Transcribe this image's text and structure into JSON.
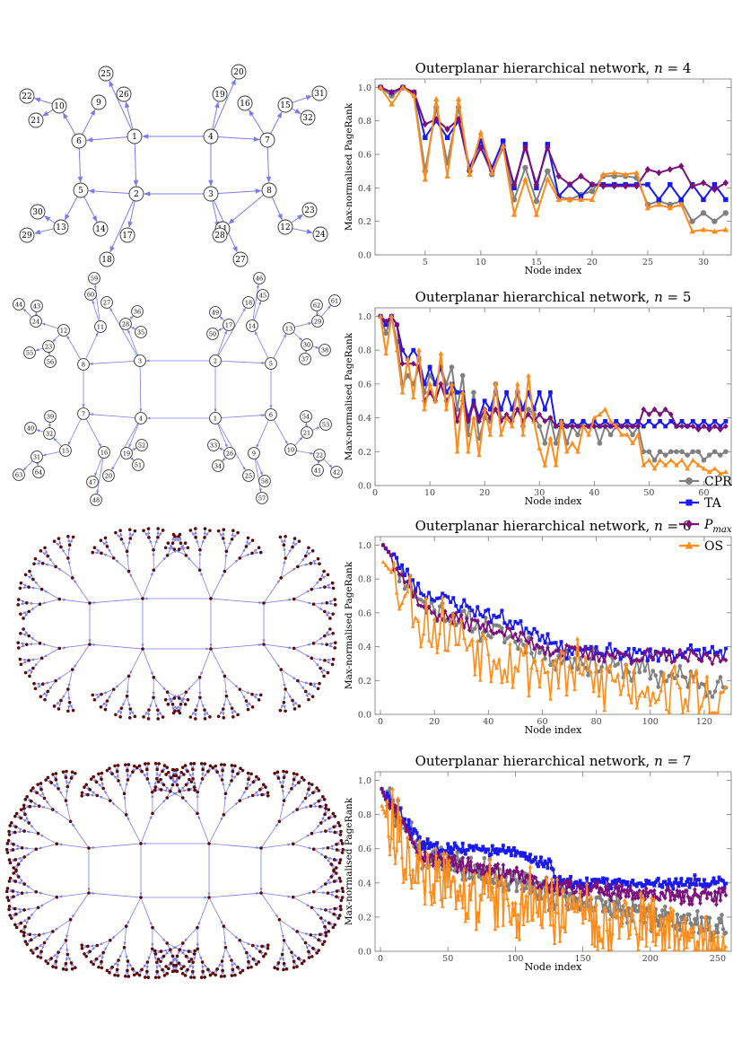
{
  "figure": {
    "legend": [
      {
        "label": "CPR",
        "color": "#808080",
        "marker": "circle"
      },
      {
        "label": "TA",
        "color": "#1a1aee",
        "marker": "square"
      },
      {
        "label": "P_max",
        "color": "#7b0f7b",
        "marker": "diamond"
      },
      {
        "label": "OS",
        "color": "#ff8c1a",
        "marker": "triangle"
      }
    ],
    "edge_color": "#7b7bee",
    "node_color": "#5a0a0a"
  },
  "networks": [
    {
      "n": 4,
      "labels": [
        "1",
        "2",
        "3",
        "4",
        "5",
        "6",
        "7",
        "8",
        "9",
        "10",
        "11",
        "12",
        "13",
        "14",
        "15",
        "16",
        "17",
        "18",
        "19",
        "20",
        "21",
        "22",
        "23",
        "24",
        "25",
        "26",
        "27",
        "28",
        "29",
        "30",
        "31",
        "32"
      ]
    },
    {
      "n": 5,
      "labels": [
        "1",
        "2",
        "3",
        "4",
        "5",
        "6",
        "7",
        "8",
        "9",
        "10",
        "11",
        "12",
        "13",
        "14",
        "15",
        "16",
        "17",
        "18",
        "19",
        "20",
        "21",
        "22",
        "23",
        "24",
        "25",
        "26",
        "27",
        "28",
        "29",
        "30",
        "31",
        "32",
        "33",
        "34",
        "35",
        "36",
        "37",
        "38",
        "39",
        "40",
        "41",
        "42",
        "43",
        "44",
        "45",
        "46",
        "47",
        "48",
        "49",
        "50",
        "51",
        "52",
        "53",
        "54",
        "55",
        "56",
        "57",
        "58",
        "59",
        "60",
        "61",
        "62",
        "63",
        "64"
      ]
    },
    {
      "n": 6
    },
    {
      "n": 7
    }
  ],
  "chart_data": [
    {
      "type": "line",
      "title": "Outerplanar hierarchical network, n = 4",
      "title_prefix": "Outerplanar hierarchical network, ",
      "title_var": "n",
      "title_val": "= 4",
      "xlabel": "Node index",
      "ylabel": "Max-normalised PageRank",
      "xlim": [
        0.5,
        32.5
      ],
      "ylim": [
        0,
        1.05
      ],
      "xticks": [
        5,
        10,
        15,
        20,
        25,
        30
      ],
      "yticks": [
        0.0,
        0.2,
        0.4,
        0.6,
        0.8,
        1.0
      ],
      "n_nodes": 32,
      "series": [
        {
          "name": "CPR",
          "values": [
            1.0,
            0.95,
            1.0,
            0.96,
            0.5,
            0.88,
            0.55,
            0.88,
            0.5,
            0.64,
            0.48,
            0.65,
            0.33,
            0.52,
            0.32,
            0.5,
            0.35,
            0.33,
            0.36,
            0.38,
            0.47,
            0.47,
            0.47,
            0.46,
            0.3,
            0.32,
            0.3,
            0.32,
            0.2,
            0.25,
            0.2,
            0.25
          ]
        },
        {
          "name": "TA",
          "values": [
            1.0,
            0.97,
            1.0,
            0.97,
            0.7,
            0.8,
            0.7,
            0.8,
            0.52,
            0.68,
            0.52,
            0.68,
            0.4,
            0.66,
            0.4,
            0.66,
            0.35,
            0.42,
            0.35,
            0.42,
            0.42,
            0.42,
            0.42,
            0.42,
            0.42,
            0.33,
            0.42,
            0.33,
            0.42,
            0.33,
            0.42,
            0.33
          ]
        },
        {
          "name": "P_max",
          "values": [
            1.0,
            0.97,
            1.0,
            0.97,
            0.78,
            0.81,
            0.75,
            0.81,
            0.5,
            0.64,
            0.5,
            0.64,
            0.42,
            0.64,
            0.42,
            0.64,
            0.47,
            0.42,
            0.47,
            0.42,
            0.41,
            0.41,
            0.41,
            0.41,
            0.51,
            0.49,
            0.51,
            0.53,
            0.41,
            0.43,
            0.39,
            0.43
          ]
        },
        {
          "name": "OS",
          "values": [
            1.0,
            0.9,
            1.0,
            0.95,
            0.45,
            0.93,
            0.47,
            0.93,
            0.48,
            0.73,
            0.49,
            0.65,
            0.24,
            0.45,
            0.24,
            0.45,
            0.33,
            0.33,
            0.33,
            0.33,
            0.48,
            0.49,
            0.48,
            0.49,
            0.28,
            0.3,
            0.28,
            0.3,
            0.14,
            0.15,
            0.14,
            0.15
          ]
        }
      ]
    },
    {
      "type": "line",
      "title": "Outerplanar hierarchical network, n = 5",
      "title_prefix": "Outerplanar hierarchical network, ",
      "title_var": "n",
      "title_val": "= 5",
      "xlabel": "Node index",
      "ylabel": "Max-normalised PageRank",
      "xlim": [
        0,
        65
      ],
      "ylim": [
        0,
        1.05
      ],
      "xticks": [
        0,
        10,
        20,
        30,
        40,
        50,
        60
      ],
      "yticks": [
        0.0,
        0.2,
        0.4,
        0.6,
        0.8,
        1.0
      ],
      "n_nodes": 64,
      "series": [
        {
          "name": "CPR",
          "values": [
            1.0,
            0.9,
            1.0,
            0.85,
            0.6,
            0.65,
            0.6,
            0.7,
            0.55,
            0.65,
            0.6,
            0.7,
            0.6,
            0.7,
            0.45,
            0.65,
            0.3,
            0.55,
            0.28,
            0.4,
            0.38,
            0.6,
            0.4,
            0.4,
            0.4,
            0.55,
            0.35,
            0.45,
            0.42,
            0.35,
            0.25,
            0.4,
            0.25,
            0.38,
            0.25,
            0.35,
            0.3,
            0.38,
            0.35,
            0.35,
            0.25,
            0.35,
            0.3,
            0.35,
            0.35,
            0.35,
            0.3,
            0.35,
            0.2,
            0.2,
            0.15,
            0.2,
            0.18,
            0.2,
            0.2,
            0.2,
            0.18,
            0.2,
            0.2,
            0.15,
            0.18,
            0.2,
            0.18,
            0.2
          ]
        },
        {
          "name": "TA",
          "values": [
            1.0,
            0.95,
            1.0,
            0.95,
            0.8,
            0.75,
            0.8,
            0.75,
            0.6,
            0.7,
            0.6,
            0.7,
            0.55,
            0.6,
            0.55,
            0.55,
            0.4,
            0.5,
            0.4,
            0.5,
            0.45,
            0.55,
            0.45,
            0.55,
            0.45,
            0.55,
            0.45,
            0.55,
            0.45,
            0.55,
            0.45,
            0.55,
            0.35,
            0.38,
            0.35,
            0.38,
            0.35,
            0.38,
            0.35,
            0.38,
            0.35,
            0.38,
            0.35,
            0.38,
            0.35,
            0.38,
            0.35,
            0.38,
            0.35,
            0.38,
            0.35,
            0.38,
            0.35,
            0.38,
            0.35,
            0.38,
            0.35,
            0.38,
            0.35,
            0.38,
            0.35,
            0.38,
            0.35,
            0.38
          ]
        },
        {
          "name": "P_max",
          "values": [
            1.0,
            0.97,
            1.0,
            0.95,
            0.72,
            0.72,
            0.72,
            0.7,
            0.5,
            0.55,
            0.5,
            0.6,
            0.5,
            0.55,
            0.38,
            0.5,
            0.38,
            0.48,
            0.38,
            0.45,
            0.4,
            0.45,
            0.38,
            0.42,
            0.38,
            0.45,
            0.38,
            0.42,
            0.38,
            0.42,
            0.38,
            0.4,
            0.35,
            0.35,
            0.35,
            0.35,
            0.35,
            0.35,
            0.35,
            0.35,
            0.35,
            0.35,
            0.35,
            0.35,
            0.35,
            0.35,
            0.35,
            0.35,
            0.45,
            0.42,
            0.45,
            0.42,
            0.45,
            0.42,
            0.35,
            0.35,
            0.35,
            0.35,
            0.33,
            0.35,
            0.33,
            0.35,
            0.33,
            0.35
          ]
        },
        {
          "name": "OS",
          "values": [
            1.0,
            0.78,
            1.0,
            0.8,
            0.55,
            0.75,
            0.52,
            0.8,
            0.45,
            0.6,
            0.5,
            0.78,
            0.45,
            0.6,
            0.2,
            0.55,
            0.2,
            0.4,
            0.18,
            0.45,
            0.3,
            0.6,
            0.3,
            0.4,
            0.35,
            0.6,
            0.3,
            0.65,
            0.38,
            0.22,
            0.12,
            0.28,
            0.12,
            0.38,
            0.2,
            0.25,
            0.2,
            0.35,
            0.3,
            0.4,
            0.42,
            0.45,
            0.38,
            0.35,
            0.3,
            0.3,
            0.25,
            0.3,
            0.12,
            0.15,
            0.1,
            0.15,
            0.12,
            0.15,
            0.12,
            0.15,
            0.1,
            0.15,
            0.12,
            0.1,
            0.08,
            0.1,
            0.07,
            0.08
          ]
        }
      ]
    },
    {
      "type": "line",
      "title": "Outerplanar hierarchical network, n = 6",
      "title_prefix": "Outerplanar hierarchical network, ",
      "title_var": "n",
      "title_val": "= 6",
      "xlabel": "Node index",
      "ylabel": "Max-normalised PageRank",
      "xlim": [
        -2,
        130
      ],
      "ylim": [
        0,
        1.05
      ],
      "xticks": [
        0,
        20,
        40,
        60,
        80,
        100,
        120
      ],
      "yticks": [
        0.0,
        0.2,
        0.4,
        0.6,
        0.8,
        1.0
      ],
      "n_nodes": 128,
      "series": [
        {
          "name": "CPR",
          "seg": [
            [
              1,
              1.0
            ],
            [
              16,
              0.65
            ],
            [
              48,
              0.45
            ],
            [
              64,
              0.35
            ],
            [
              96,
              0.25
            ],
            [
              128,
              0.17
            ]
          ],
          "amp": 0.09,
          "seed": 11
        },
        {
          "name": "TA",
          "seg": [
            [
              1,
              1.0
            ],
            [
              16,
              0.72
            ],
            [
              48,
              0.55
            ],
            [
              64,
              0.45
            ],
            [
              65,
              0.38
            ],
            [
              96,
              0.36
            ],
            [
              128,
              0.37
            ]
          ],
          "amp": 0.05,
          "seed": 23
        },
        {
          "name": "P_max",
          "seg": [
            [
              1,
              1.0
            ],
            [
              16,
              0.62
            ],
            [
              48,
              0.48
            ],
            [
              64,
              0.38
            ],
            [
              96,
              0.34
            ],
            [
              128,
              0.33
            ]
          ],
          "amp": 0.05,
          "seed": 37
        },
        {
          "name": "OS",
          "seg": [
            [
              1,
              0.9
            ],
            [
              16,
              0.55
            ],
            [
              48,
              0.35
            ],
            [
              64,
              0.25
            ],
            [
              96,
              0.18
            ],
            [
              128,
              0.05
            ]
          ],
          "amp": 0.22,
          "seed": 53
        }
      ]
    },
    {
      "type": "line",
      "title": "Outerplanar hierarchical network, n = 7",
      "title_prefix": "Outerplanar hierarchical network, ",
      "title_var": "n",
      "title_val": "= 7",
      "xlabel": "Node index",
      "ylabel": "Max-normalised PageRank",
      "xlim": [
        -4,
        260
      ],
      "ylim": [
        0,
        1.05
      ],
      "xticks": [
        0,
        50,
        100,
        150,
        200,
        250
      ],
      "yticks": [
        0.0,
        0.2,
        0.4,
        0.6,
        0.8,
        1.0
      ],
      "n_nodes": 256,
      "series": [
        {
          "name": "CPR",
          "seg": [
            [
              1,
              0.95
            ],
            [
              32,
              0.55
            ],
            [
              96,
              0.42
            ],
            [
              128,
              0.32
            ],
            [
              192,
              0.22
            ],
            [
              256,
              0.13
            ]
          ],
          "amp": 0.09,
          "seed": 71
        },
        {
          "name": "TA",
          "seg": [
            [
              1,
              0.95
            ],
            [
              32,
              0.62
            ],
            [
              96,
              0.58
            ],
            [
              128,
              0.5
            ],
            [
              129,
              0.4
            ],
            [
              192,
              0.4
            ],
            [
              256,
              0.41
            ]
          ],
          "amp": 0.04,
          "seed": 83
        },
        {
          "name": "P_max",
          "seg": [
            [
              1,
              0.95
            ],
            [
              32,
              0.55
            ],
            [
              96,
              0.45
            ],
            [
              128,
              0.38
            ],
            [
              192,
              0.33
            ],
            [
              256,
              0.32
            ]
          ],
          "amp": 0.05,
          "seed": 97
        },
        {
          "name": "OS",
          "seg": [
            [
              1,
              0.85
            ],
            [
              32,
              0.4
            ],
            [
              96,
              0.3
            ],
            [
              128,
              0.25
            ],
            [
              192,
              0.15
            ],
            [
              256,
              0.02
            ]
          ],
          "amp": 0.22,
          "seed": 113
        }
      ]
    }
  ]
}
